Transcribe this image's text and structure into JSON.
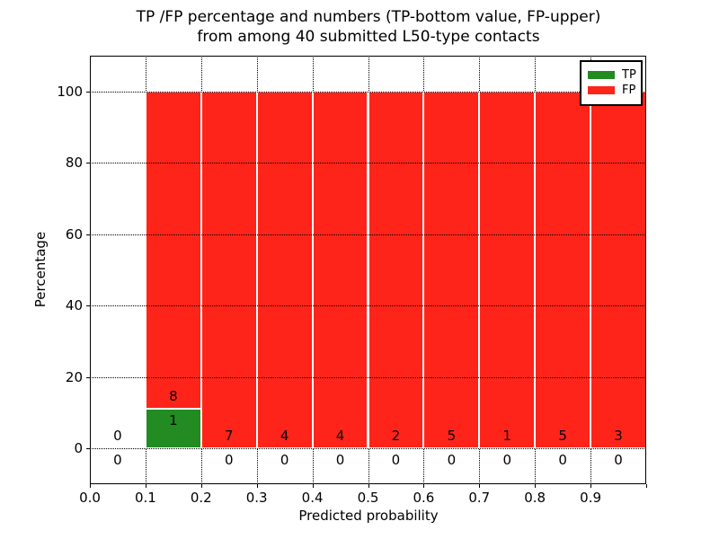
{
  "chart_data": {
    "type": "bar",
    "stacked": true,
    "title": [
      "TP /FP percentage and numbers (TP-bottom value, FP-upper)",
      "from among 40 submitted L50-type contacts"
    ],
    "xlabel": "Predicted probability",
    "ylabel": "Percentage",
    "xlim": [
      0.0,
      1.0
    ],
    "ylim": [
      -10,
      110
    ],
    "grid": true,
    "x_tick_positions": [
      0.0,
      0.1,
      0.2,
      0.3,
      0.4,
      0.5,
      0.6,
      0.7,
      0.8,
      0.9,
      1.0
    ],
    "x_tick_labels": [
      "0.0",
      "0.1",
      "0.2",
      "0.3",
      "0.4",
      "0.5",
      "0.6",
      "0.7",
      "0.8",
      "0.9",
      ""
    ],
    "y_ticks": [
      0,
      20,
      40,
      60,
      80,
      100
    ],
    "bin_width": 0.1,
    "bins": [
      {
        "range": [
          0.0,
          0.1
        ],
        "tp": 0,
        "fp": 0,
        "tp_pct": 0,
        "fp_pct": 0
      },
      {
        "range": [
          0.1,
          0.2
        ],
        "tp": 1,
        "fp": 8,
        "tp_pct": 11.1,
        "fp_pct": 88.9
      },
      {
        "range": [
          0.2,
          0.3
        ],
        "tp": 0,
        "fp": 7,
        "tp_pct": 0,
        "fp_pct": 100
      },
      {
        "range": [
          0.3,
          0.4
        ],
        "tp": 0,
        "fp": 4,
        "tp_pct": 0,
        "fp_pct": 100
      },
      {
        "range": [
          0.4,
          0.5
        ],
        "tp": 0,
        "fp": 4,
        "tp_pct": 0,
        "fp_pct": 100
      },
      {
        "range": [
          0.5,
          0.6
        ],
        "tp": 0,
        "fp": 2,
        "tp_pct": 0,
        "fp_pct": 100
      },
      {
        "range": [
          0.6,
          0.7
        ],
        "tp": 0,
        "fp": 5,
        "tp_pct": 0,
        "fp_pct": 100
      },
      {
        "range": [
          0.7,
          0.8
        ],
        "tp": 0,
        "fp": 1,
        "tp_pct": 0,
        "fp_pct": 100
      },
      {
        "range": [
          0.8,
          0.9
        ],
        "tp": 0,
        "fp": 5,
        "tp_pct": 0,
        "fp_pct": 100
      },
      {
        "range": [
          0.9,
          1.0
        ],
        "tp": 0,
        "fp": 3,
        "tp_pct": 0,
        "fp_pct": 100
      }
    ],
    "series": [
      {
        "name": "TP",
        "color": "#228b22"
      },
      {
        "name": "FP",
        "color": "#ff2419"
      }
    ],
    "bar_edge_color": "#ffffff",
    "legend": {
      "position": "upper right",
      "entries": [
        "TP",
        "FP"
      ]
    }
  }
}
